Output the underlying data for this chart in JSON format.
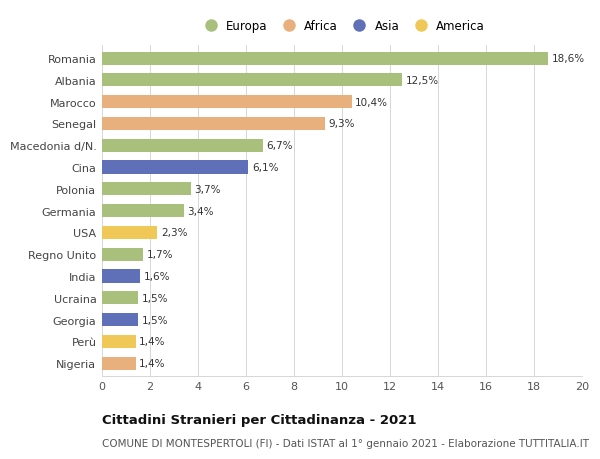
{
  "categories": [
    "Romania",
    "Albania",
    "Marocco",
    "Senegal",
    "Macedonia d/N.",
    "Cina",
    "Polonia",
    "Germania",
    "USA",
    "Regno Unito",
    "India",
    "Ucraina",
    "Georgia",
    "Perù",
    "Nigeria"
  ],
  "values": [
    18.6,
    12.5,
    10.4,
    9.3,
    6.7,
    6.1,
    3.7,
    3.4,
    2.3,
    1.7,
    1.6,
    1.5,
    1.5,
    1.4,
    1.4
  ],
  "labels": [
    "18,6%",
    "12,5%",
    "10,4%",
    "9,3%",
    "6,7%",
    "6,1%",
    "3,7%",
    "3,4%",
    "2,3%",
    "1,7%",
    "1,6%",
    "1,5%",
    "1,5%",
    "1,4%",
    "1,4%"
  ],
  "continents": [
    "Europa",
    "Europa",
    "Africa",
    "Africa",
    "Europa",
    "Asia",
    "Europa",
    "Europa",
    "America",
    "Europa",
    "Asia",
    "Europa",
    "Asia",
    "America",
    "Africa"
  ],
  "colors": {
    "Europa": "#a8c07c",
    "Africa": "#e8b07c",
    "Asia": "#6070b8",
    "America": "#f0c858"
  },
  "xlim": [
    0,
    20
  ],
  "xticks": [
    0,
    2,
    4,
    6,
    8,
    10,
    12,
    14,
    16,
    18,
    20
  ],
  "title": "Cittadini Stranieri per Cittadinanza - 2021",
  "subtitle": "COMUNE DI MONTESPERTOLI (FI) - Dati ISTAT al 1° gennaio 2021 - Elaborazione TUTTITALIA.IT",
  "bg_color": "#ffffff",
  "grid_color": "#d0d0d0",
  "bar_height": 0.6,
  "label_fontsize": 7.5,
  "title_fontsize": 9.5,
  "subtitle_fontsize": 7.5,
  "ytick_fontsize": 8.0,
  "xtick_fontsize": 8.0,
  "legend_fontsize": 8.5
}
